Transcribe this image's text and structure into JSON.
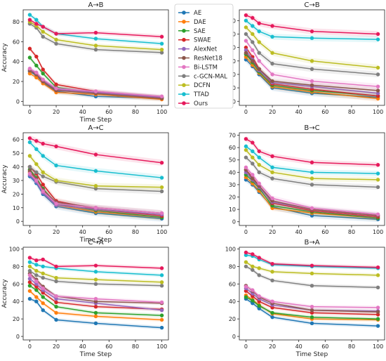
{
  "figure": {
    "legend_title": "",
    "legend_entries": [
      "AE",
      "DAE",
      "SAE",
      "SWAE",
      "AlexNet",
      "ResNet18",
      "Bi-LSTM",
      "c-GCN-MAL",
      "DCFN",
      "TTAD",
      "Ours"
    ]
  },
  "colors": {
    "AE": "#1f77b4",
    "DAE": "#ff7f0e",
    "SAE": "#2ca02c",
    "SWAE": "#d62728",
    "AlexNet": "#9467bd",
    "ResNet18": "#8c564b",
    "Bi-LSTM": "#e377c2",
    "c-GCN-MAL": "#7f7f7f",
    "DCFN": "#bcbd22",
    "TTAD": "#17becf",
    "Ours": "#e6195b"
  },
  "chart_data": [
    {
      "type": "line",
      "title": "A→B",
      "xlabel": "Time Step",
      "ylabel": "Accuracy",
      "x": [
        0,
        5,
        10,
        20,
        50,
        100
      ],
      "xlim": [
        -5,
        105
      ],
      "ylim": [
        -4,
        92
      ],
      "yticks": [
        0,
        20,
        40,
        60,
        80
      ],
      "xticks": [
        0,
        20,
        40,
        60,
        80,
        100
      ],
      "grid": false,
      "series": [
        {
          "name": "AE",
          "values": [
            30,
            26,
            19,
            10,
            5,
            3
          ]
        },
        {
          "name": "DAE",
          "values": [
            28,
            24,
            18,
            9,
            7,
            2
          ]
        },
        {
          "name": "SAE",
          "values": [
            44,
            36,
            28,
            14,
            9,
            4
          ]
        },
        {
          "name": "SWAE",
          "values": [
            53,
            45,
            32,
            17,
            10,
            4
          ]
        },
        {
          "name": "AlexNet",
          "values": [
            32,
            28,
            21,
            12,
            9,
            4
          ]
        },
        {
          "name": "ResNet18",
          "values": [
            31,
            27,
            20,
            11,
            8,
            3
          ]
        },
        {
          "name": "Bi-LSTM",
          "values": [
            33,
            29,
            22,
            13,
            10,
            5
          ]
        },
        {
          "name": "c-GCN-MAL",
          "values": [
            78,
            74,
            65,
            58,
            52,
            49
          ]
        },
        {
          "name": "DCFN",
          "values": [
            80,
            76,
            70,
            62,
            56,
            52
          ]
        },
        {
          "name": "TTAD",
          "values": [
            87,
            82,
            75,
            68,
            63,
            58
          ]
        },
        {
          "name": "Ours",
          "values": [
            82,
            78,
            75,
            68,
            69,
            65
          ]
        }
      ]
    },
    {
      "type": "line",
      "title": "C→B",
      "xlabel": "",
      "ylabel": "",
      "x": [
        0,
        5,
        10,
        20,
        50,
        100
      ],
      "xlim": [
        -5,
        105
      ],
      "ylim": [
        -3,
        68
      ],
      "yticks": [
        0,
        10,
        20,
        30,
        40,
        50,
        60
      ],
      "xticks": [
        0,
        20,
        40,
        60,
        80,
        100
      ],
      "grid": false,
      "series": [
        {
          "name": "AE",
          "values": [
            31,
            26,
            20,
            10,
            6,
            3
          ]
        },
        {
          "name": "DAE",
          "values": [
            33,
            27,
            21,
            11,
            7,
            2
          ]
        },
        {
          "name": "SAE",
          "values": [
            35,
            29,
            22,
            12,
            8,
            4
          ]
        },
        {
          "name": "SWAE",
          "values": [
            40,
            33,
            24,
            13,
            9,
            4
          ]
        },
        {
          "name": "AlexNet",
          "values": [
            38,
            31,
            23,
            14,
            11,
            6
          ]
        },
        {
          "name": "ResNet18",
          "values": [
            36,
            30,
            24,
            15,
            12,
            8
          ]
        },
        {
          "name": "Bi-LSTM",
          "values": [
            45,
            38,
            30,
            20,
            15,
            11
          ]
        },
        {
          "name": "c-GCN-MAL",
          "values": [
            50,
            44,
            36,
            28,
            24,
            20
          ]
        },
        {
          "name": "DCFN",
          "values": [
            55,
            50,
            44,
            36,
            30,
            25
          ]
        },
        {
          "name": "TTAD",
          "values": [
            60,
            56,
            52,
            48,
            47,
            46
          ]
        },
        {
          "name": "Ours",
          "values": [
            64,
            62,
            58,
            56,
            52,
            50
          ]
        }
      ]
    },
    {
      "type": "line",
      "title": "A→C",
      "xlabel": "Time Step",
      "ylabel": "Accuracy",
      "x": [
        0,
        5,
        10,
        20,
        50,
        100
      ],
      "xlim": [
        -5,
        105
      ],
      "ylim": [
        -3,
        65
      ],
      "yticks": [
        0,
        10,
        20,
        30,
        40,
        50,
        60
      ],
      "xticks": [
        0,
        20,
        40,
        60,
        80,
        100
      ],
      "grid": false,
      "series": [
        {
          "name": "AE",
          "values": [
            33,
            28,
            20,
            11,
            6,
            2
          ]
        },
        {
          "name": "DAE",
          "values": [
            36,
            30,
            22,
            12,
            7,
            3
          ]
        },
        {
          "name": "SAE",
          "values": [
            38,
            32,
            24,
            13,
            8,
            3
          ]
        },
        {
          "name": "SWAE",
          "values": [
            40,
            35,
            27,
            15,
            9,
            4
          ]
        },
        {
          "name": "AlexNet",
          "values": [
            34,
            29,
            21,
            12,
            9,
            5
          ]
        },
        {
          "name": "ResNet18",
          "values": [
            37,
            31,
            23,
            14,
            10,
            6
          ]
        },
        {
          "name": "Bi-LSTM",
          "values": [
            35,
            30,
            22,
            13,
            10,
            6
          ]
        },
        {
          "name": "c-GCN-MAL",
          "values": [
            40,
            36,
            33,
            29,
            24,
            22
          ]
        },
        {
          "name": "DCFN",
          "values": [
            48,
            42,
            36,
            30,
            26,
            25
          ]
        },
        {
          "name": "TTAD",
          "values": [
            58,
            53,
            48,
            41,
            37,
            32
          ]
        },
        {
          "name": "Ours",
          "values": [
            61,
            59,
            57,
            55,
            49,
            43
          ]
        }
      ]
    },
    {
      "type": "line",
      "title": "B→C",
      "xlabel": "",
      "ylabel": "",
      "x": [
        0,
        5,
        10,
        20,
        50,
        100
      ],
      "xlim": [
        -5,
        105
      ],
      "ylim": [
        -3,
        72
      ],
      "yticks": [
        0,
        10,
        20,
        30,
        40,
        50,
        60,
        70
      ],
      "xticks": [
        0,
        20,
        40,
        60,
        80,
        100
      ],
      "grid": false,
      "series": [
        {
          "name": "AE",
          "values": [
            34,
            30,
            24,
            12,
            5,
            2
          ]
        },
        {
          "name": "DAE",
          "values": [
            36,
            31,
            25,
            11,
            7,
            3
          ]
        },
        {
          "name": "SAE",
          "values": [
            38,
            33,
            27,
            13,
            8,
            3
          ]
        },
        {
          "name": "SWAE",
          "values": [
            42,
            36,
            29,
            15,
            9,
            4
          ]
        },
        {
          "name": "AlexNet",
          "values": [
            40,
            34,
            28,
            16,
            10,
            5
          ]
        },
        {
          "name": "ResNet18",
          "values": [
            42,
            35,
            29,
            17,
            10,
            5
          ]
        },
        {
          "name": "Bi-LSTM",
          "values": [
            44,
            38,
            31,
            19,
            11,
            6
          ]
        },
        {
          "name": "c-GCN-MAL",
          "values": [
            52,
            47,
            40,
            35,
            30,
            28
          ]
        },
        {
          "name": "DCFN",
          "values": [
            58,
            52,
            46,
            40,
            35,
            34
          ]
        },
        {
          "name": "TTAD",
          "values": [
            61,
            57,
            52,
            44,
            40,
            39
          ]
        },
        {
          "name": "Ours",
          "values": [
            67,
            64,
            57,
            53,
            48,
            46
          ]
        }
      ]
    },
    {
      "type": "line",
      "title": "C→A",
      "xlabel": "Time Step",
      "ylabel": "Accuracy",
      "x": [
        0,
        5,
        10,
        20,
        50,
        100
      ],
      "xlim": [
        -5,
        105
      ],
      "ylim": [
        -4,
        102
      ],
      "yticks": [
        0,
        20,
        40,
        60,
        80,
        100
      ],
      "xticks": [
        0,
        20,
        40,
        60,
        80,
        100
      ],
      "grid": false,
      "series": [
        {
          "name": "AE",
          "values": [
            43,
            40,
            30,
            19,
            15,
            10
          ]
        },
        {
          "name": "DAE",
          "values": [
            52,
            45,
            38,
            27,
            23,
            19
          ]
        },
        {
          "name": "SAE",
          "values": [
            58,
            53,
            45,
            34,
            27,
            24
          ]
        },
        {
          "name": "SWAE",
          "values": [
            62,
            57,
            50,
            39,
            34,
            31
          ]
        },
        {
          "name": "AlexNet",
          "values": [
            66,
            60,
            53,
            43,
            38,
            30
          ]
        },
        {
          "name": "ResNet18",
          "values": [
            72,
            65,
            57,
            46,
            40,
            38
          ]
        },
        {
          "name": "Bi-LSTM",
          "values": [
            70,
            63,
            55,
            46,
            43,
            39
          ]
        },
        {
          "name": "c-GCN-MAL",
          "values": [
            75,
            70,
            67,
            63,
            60,
            58
          ]
        },
        {
          "name": "DCFN",
          "values": [
            80,
            75,
            72,
            67,
            65,
            62
          ]
        },
        {
          "name": "TTAD",
          "values": [
            85,
            82,
            80,
            78,
            74,
            70
          ]
        },
        {
          "name": "Ours",
          "values": [
            90,
            87,
            88,
            80,
            81,
            78
          ]
        }
      ]
    },
    {
      "type": "line",
      "title": "B→A",
      "xlabel": "Time Step",
      "ylabel": "",
      "x": [
        0,
        5,
        10,
        20,
        50,
        100
      ],
      "xlim": [
        -5,
        105
      ],
      "ylim": [
        -4,
        102
      ],
      "yticks": [
        0,
        20,
        40,
        60,
        80,
        100
      ],
      "xticks": [
        0,
        20,
        40,
        60,
        80,
        100
      ],
      "grid": false,
      "series": [
        {
          "name": "AE",
          "values": [
            43,
            38,
            32,
            22,
            15,
            12
          ]
        },
        {
          "name": "DAE",
          "values": [
            47,
            42,
            36,
            26,
            20,
            19
          ]
        },
        {
          "name": "SAE",
          "values": [
            45,
            41,
            35,
            27,
            22,
            20
          ]
        },
        {
          "name": "SWAE",
          "values": [
            52,
            46,
            40,
            33,
            27,
            25
          ]
        },
        {
          "name": "AlexNet",
          "values": [
            55,
            49,
            43,
            36,
            30,
            29
          ]
        },
        {
          "name": "ResNet18",
          "values": [
            58,
            52,
            45,
            38,
            30,
            28
          ]
        },
        {
          "name": "Bi-LSTM",
          "values": [
            57,
            53,
            46,
            40,
            34,
            33
          ]
        },
        {
          "name": "c-GCN-MAL",
          "values": [
            80,
            76,
            70,
            64,
            58,
            56
          ]
        },
        {
          "name": "DCFN",
          "values": [
            85,
            80,
            78,
            74,
            72,
            70
          ]
        },
        {
          "name": "TTAD",
          "values": [
            93,
            92,
            88,
            82,
            80,
            78
          ]
        },
        {
          "name": "Ours",
          "values": [
            96,
            94,
            90,
            83,
            81,
            79
          ]
        }
      ]
    }
  ]
}
